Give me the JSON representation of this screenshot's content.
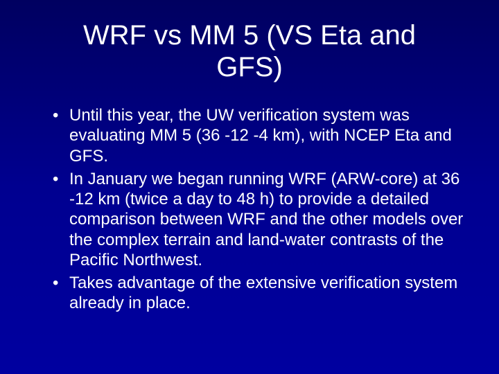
{
  "slide": {
    "title": "WRF vs MM 5 (VS Eta and GFS)",
    "bullets": [
      "Until this year, the UW verification system was evaluating MM 5 (36 -12 -4 km), with NCEP Eta and GFS.",
      "In January we began running WRF (ARW-core) at 36 -12 km (twice a day to 48 h) to provide a detailed comparison between WRF and the other models over the complex terrain and land-water contrasts of the Pacific Northwest.",
      "Takes advantage of the extensive verification system already in place."
    ],
    "colors": {
      "background_top": "#000060",
      "background_bottom": "#0000a0",
      "text": "#ffffff",
      "title": "#ffffff"
    },
    "typography": {
      "title_fontsize": 40,
      "body_fontsize": 24,
      "font_family": "Arial"
    }
  }
}
